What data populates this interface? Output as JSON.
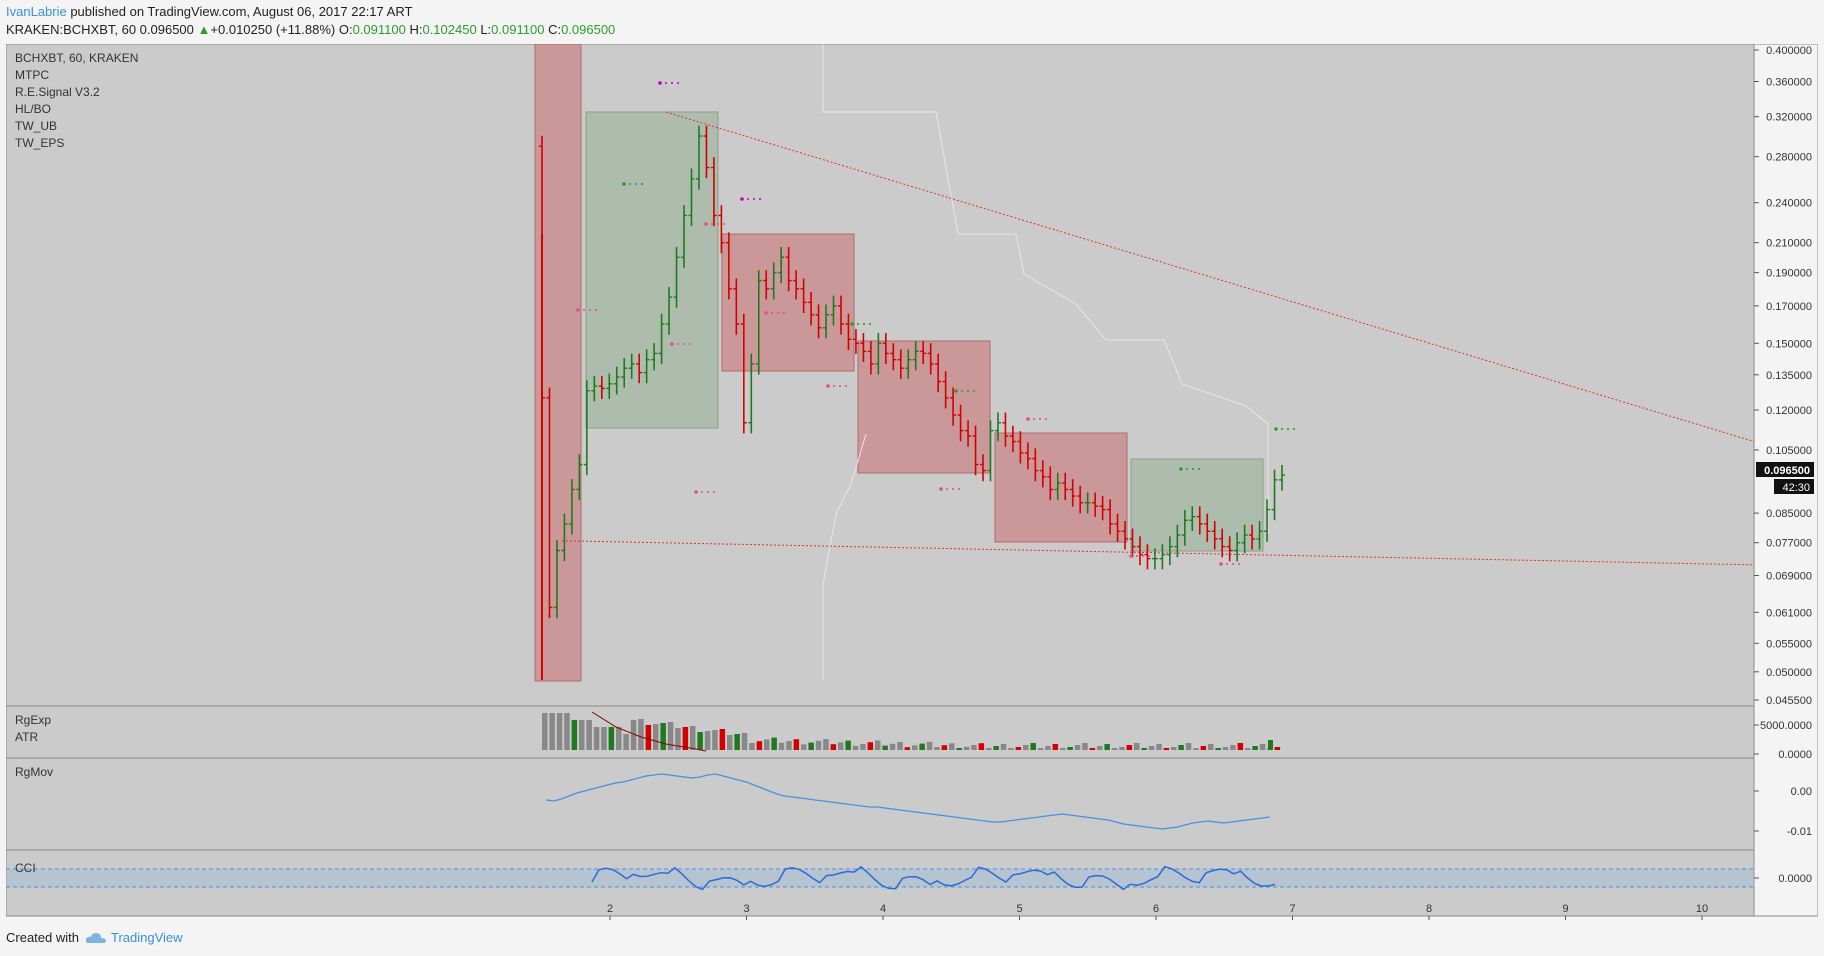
{
  "header": {
    "author": "IvanLabrie",
    "published_text": " published on TradingView.com, August 06, 2017 22:17 ART",
    "symbol_line": "KRAKEN:BCHXBT, 60",
    "last": "0.096500",
    "change": "+0.010250 (+11.88%)",
    "o_label": "O:",
    "o_value": "0.091100",
    "h_label": "H:",
    "h_value": "0.102450",
    "l_label": "L:",
    "l_value": "0.091100",
    "c_label": "C:",
    "c_value": "0.096500"
  },
  "legend": {
    "main": [
      "BCHXBT, 60, KRAKEN",
      "MTPC",
      "R.E.Signal V3.2",
      "HL/BO",
      "TW_UB",
      "TW_EPS"
    ],
    "pane2": [
      "RgExp",
      "ATR"
    ],
    "pane3": [
      "RgMov"
    ],
    "pane4": [
      "CCI"
    ]
  },
  "price_badge": "0.096500",
  "time_badge": "42:30",
  "footer": {
    "created_with": "Created with",
    "brand": "TradingView"
  },
  "colors": {
    "up": "#1f7a1f",
    "down": "#d40000",
    "box_red": "#c98b8b",
    "box_green": "#9fb59f",
    "trend": "#e03030",
    "line_blue": "#4a90e2",
    "bg": "#cbcbcb"
  },
  "chart_data": {
    "type": "candlestick",
    "price_axis": [
      "0.400000",
      "0.360000",
      "0.320000",
      "0.280000",
      "0.240000",
      "0.210000",
      "0.190000",
      "0.170000",
      "0.150000",
      "0.135000",
      "0.120000",
      "0.105000",
      "0.085000",
      "0.077000",
      "0.069000",
      "0.061000",
      "0.055000",
      "0.050000",
      "0.045500"
    ],
    "price_axis_scale": "log",
    "x_ticks": [
      "2",
      "3",
      "4",
      "5",
      "6",
      "7",
      "8",
      "9",
      "10"
    ],
    "closes": [
      0.125,
      0.062,
      0.075,
      0.082,
      0.092,
      0.1,
      0.128,
      0.13,
      0.129,
      0.131,
      0.134,
      0.138,
      0.14,
      0.136,
      0.142,
      0.145,
      0.16,
      0.175,
      0.2,
      0.23,
      0.26,
      0.3,
      0.27,
      0.23,
      0.21,
      0.18,
      0.16,
      0.115,
      0.14,
      0.185,
      0.18,
      0.19,
      0.2,
      0.185,
      0.18,
      0.172,
      0.165,
      0.158,
      0.165,
      0.17,
      0.16,
      0.152,
      0.15,
      0.146,
      0.14,
      0.15,
      0.145,
      0.142,
      0.138,
      0.142,
      0.146,
      0.145,
      0.14,
      0.132,
      0.125,
      0.118,
      0.112,
      0.11,
      0.1,
      0.098,
      0.112,
      0.115,
      0.11,
      0.108,
      0.104,
      0.102,
      0.098,
      0.096,
      0.092,
      0.094,
      0.092,
      0.09,
      0.088,
      0.088,
      0.087,
      0.086,
      0.082,
      0.08,
      0.078,
      0.076,
      0.074,
      0.073,
      0.073,
      0.074,
      0.076,
      0.079,
      0.083,
      0.084,
      0.082,
      0.08,
      0.078,
      0.076,
      0.075,
      0.077,
      0.079,
      0.078,
      0.08,
      0.086,
      0.095,
      0.0965
    ],
    "trendlines": [
      {
        "from_price": 0.325,
        "to_price": 0.108
      },
      {
        "from_price": 0.0775,
        "to_price": 0.0715
      }
    ],
    "pane_axes": {
      "rgexp": [
        "5000.0000",
        "0.0000"
      ],
      "rgmov": [
        "0.00",
        "-0.01"
      ],
      "cci": [
        "0.0000"
      ]
    }
  }
}
